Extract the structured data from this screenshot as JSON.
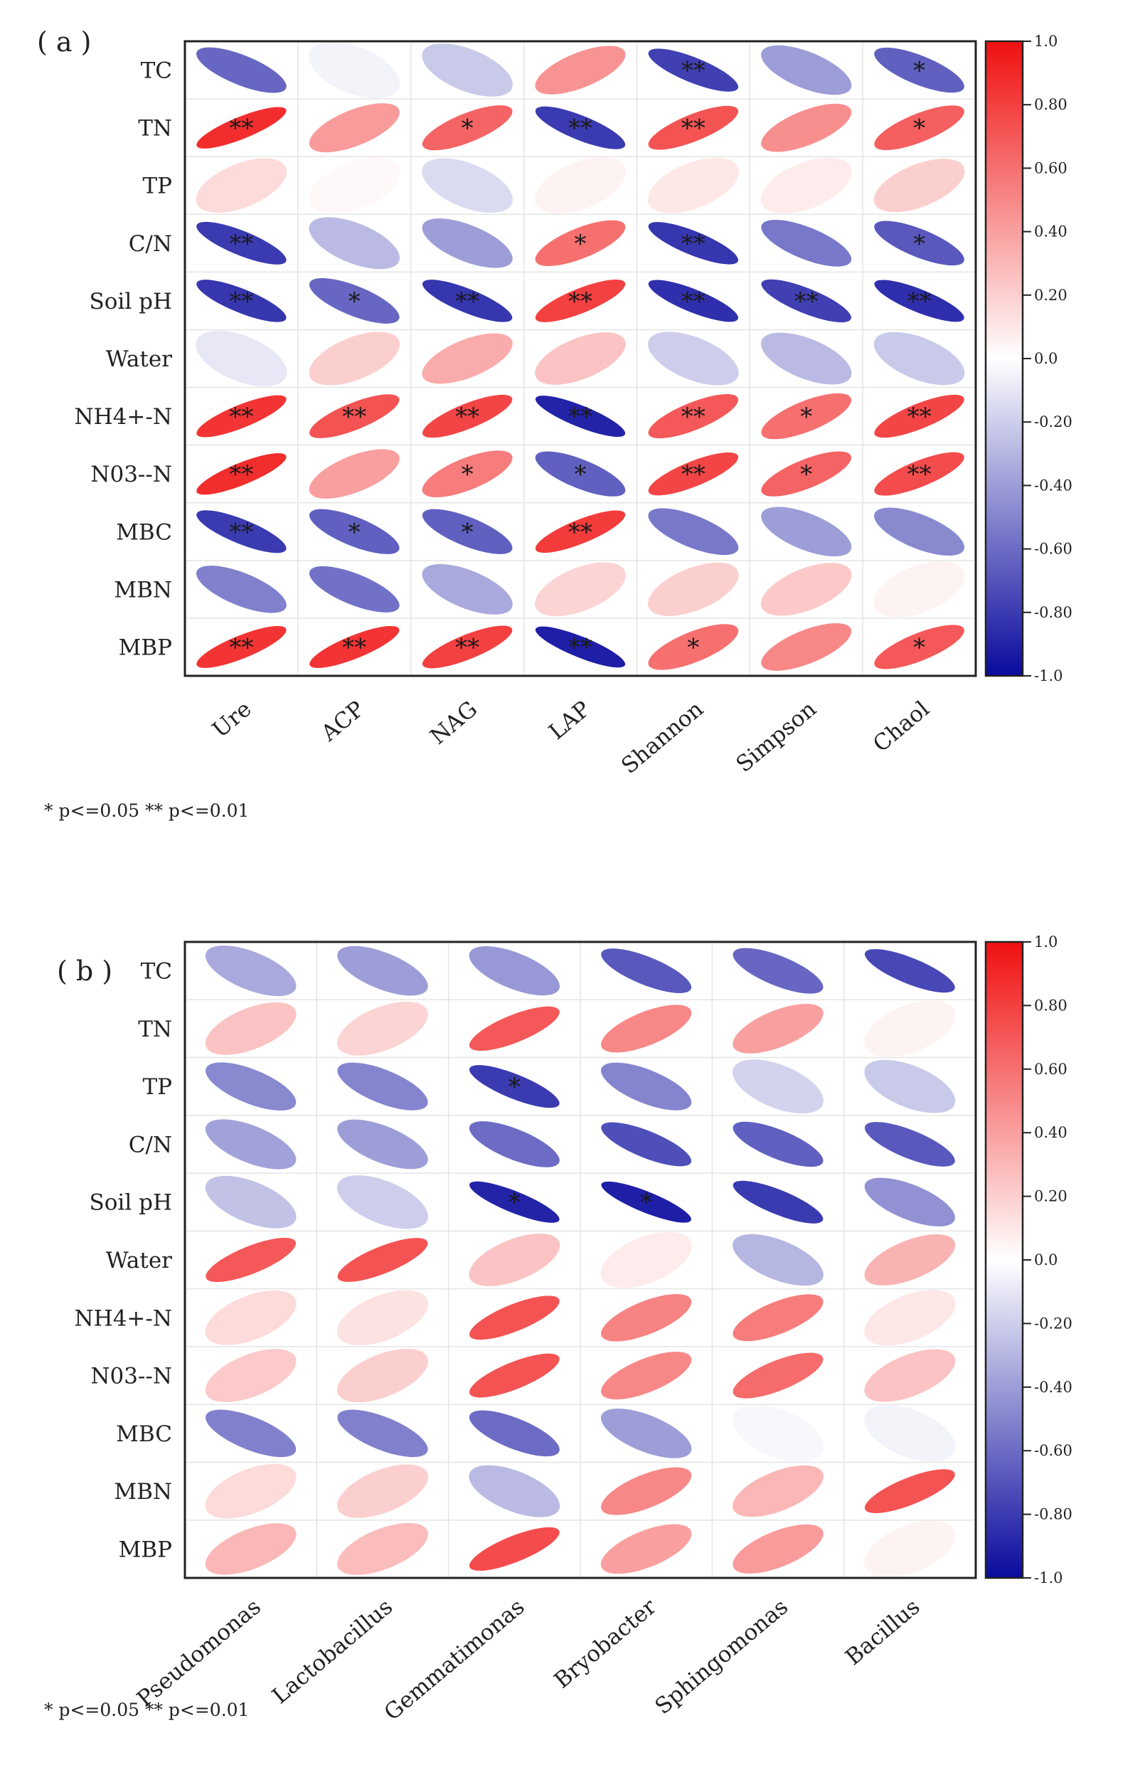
{
  "chart_data": [
    {
      "type": "heatmap",
      "panel_label": "( a )",
      "rows": [
        "TC",
        "TN",
        "TP",
        "C/N",
        "Soil  pH",
        "Water",
        "NH4+-N",
        "N03--N",
        "MBC",
        "MBN",
        "MBP"
      ],
      "columns": [
        "Ure",
        "ACP",
        "NAG",
        "LAP",
        "Shannon",
        "Simpson",
        "Chaol"
      ],
      "values": [
        [
          -0.62,
          -0.05,
          -0.22,
          0.45,
          -0.78,
          -0.4,
          -0.65
        ],
        [
          0.88,
          0.42,
          0.65,
          -0.8,
          0.72,
          0.47,
          0.67
        ],
        [
          0.15,
          0.03,
          -0.15,
          0.05,
          0.1,
          0.08,
          0.2
        ],
        [
          -0.8,
          -0.28,
          -0.4,
          0.6,
          -0.82,
          -0.55,
          -0.68
        ],
        [
          -0.82,
          -0.62,
          -0.82,
          0.8,
          -0.85,
          -0.78,
          -0.85
        ],
        [
          -0.1,
          0.2,
          0.35,
          0.25,
          -0.2,
          -0.28,
          -0.22
        ],
        [
          0.85,
          0.72,
          0.78,
          -0.9,
          0.7,
          0.6,
          0.78
        ],
        [
          0.88,
          0.4,
          0.55,
          -0.65,
          0.78,
          0.65,
          0.75
        ],
        [
          -0.8,
          -0.65,
          -0.65,
          0.82,
          -0.55,
          -0.4,
          -0.48
        ],
        [
          -0.52,
          -0.58,
          -0.35,
          0.18,
          0.2,
          0.23,
          0.05
        ],
        [
          0.85,
          0.85,
          0.8,
          -0.92,
          0.6,
          0.5,
          0.7
        ]
      ],
      "significance": [
        [
          "",
          "",
          "",
          "",
          "**",
          "",
          "*"
        ],
        [
          "**",
          "",
          "*",
          "**",
          "**",
          "",
          "*"
        ],
        [
          "",
          "",
          "",
          "",
          "",
          "",
          ""
        ],
        [
          "**",
          "",
          "",
          "*",
          "**",
          "",
          "*"
        ],
        [
          "**",
          "*",
          "**",
          "**",
          "**",
          "**",
          "**"
        ],
        [
          "",
          "",
          "",
          "",
          "",
          "",
          ""
        ],
        [
          "**",
          "**",
          "**",
          "**",
          "**",
          "*",
          "**"
        ],
        [
          "**",
          "",
          "*",
          "*",
          "**",
          "*",
          "**"
        ],
        [
          "**",
          "*",
          "*",
          "**",
          "",
          "",
          ""
        ],
        [
          "",
          "",
          "",
          "",
          "",
          "",
          ""
        ],
        [
          "**",
          "**",
          "**",
          "**",
          "*",
          "",
          "*"
        ]
      ],
      "colorbar": {
        "range": [
          -1.0,
          1.0
        ],
        "ticks": [
          "1.0",
          "0.80",
          "0.60",
          "0.40",
          "0.20",
          "0.0",
          "-0.20",
          "-0.40",
          "-0.60",
          "-0.80",
          "-1.0"
        ],
        "colors": {
          "negative": "#0a0a9e",
          "zero": "#ffffff",
          "positive": "#f01010"
        }
      },
      "footnote": "* p<=0.05   ** p<=0.01"
    },
    {
      "type": "heatmap",
      "panel_label": "( b )",
      "rows": [
        "TC",
        "TN",
        "TP",
        "C/N",
        "Soil  pH",
        "Water",
        "NH4+-N",
        "N03--N",
        "MBC",
        "MBN",
        "MBP"
      ],
      "columns": [
        "Pseudomonas",
        "Lactobacillus",
        "Gemmatimonas",
        "Bryobacter",
        "Sphingomonas",
        "Bacillus"
      ],
      "values": [
        [
          -0.35,
          -0.4,
          -0.42,
          -0.68,
          -0.62,
          -0.75
        ],
        [
          0.25,
          0.18,
          0.7,
          0.5,
          0.4,
          0.05
        ],
        [
          -0.48,
          -0.5,
          -0.8,
          -0.5,
          -0.18,
          -0.22
        ],
        [
          -0.38,
          -0.4,
          -0.6,
          -0.72,
          -0.65,
          -0.68
        ],
        [
          -0.25,
          -0.2,
          -0.9,
          -0.92,
          -0.8,
          -0.45
        ],
        [
          0.7,
          0.72,
          0.25,
          0.08,
          -0.3,
          0.32
        ],
        [
          0.15,
          0.12,
          0.72,
          0.52,
          0.55,
          0.1
        ],
        [
          0.22,
          0.2,
          0.72,
          0.5,
          0.62,
          0.25
        ],
        [
          -0.52,
          -0.52,
          -0.6,
          -0.4,
          -0.03,
          -0.05
        ],
        [
          0.15,
          0.2,
          -0.28,
          0.5,
          0.3,
          0.72
        ],
        [
          0.3,
          0.28,
          0.75,
          0.4,
          0.42,
          0.05
        ]
      ],
      "significance": [
        [
          "",
          "",
          "",
          "",
          "",
          ""
        ],
        [
          "",
          "",
          "",
          "",
          "",
          ""
        ],
        [
          "",
          "",
          "*",
          "",
          "",
          ""
        ],
        [
          "",
          "",
          "",
          "",
          "",
          ""
        ],
        [
          "",
          "",
          "*",
          "*",
          "",
          ""
        ],
        [
          "",
          "",
          "",
          "",
          "",
          ""
        ],
        [
          "",
          "",
          "",
          "",
          "",
          ""
        ],
        [
          "",
          "",
          "",
          "",
          "",
          ""
        ],
        [
          "",
          "",
          "",
          "",
          "",
          ""
        ],
        [
          "",
          "",
          "",
          "",
          "",
          ""
        ],
        [
          "",
          "",
          "",
          "",
          "",
          ""
        ]
      ],
      "colorbar": {
        "range": [
          -1.0,
          1.0
        ],
        "ticks": [
          "1.0",
          "0.80",
          "0.60",
          "0.40",
          "0.20",
          "0.0",
          "-0.20",
          "-0.40",
          "-0.60",
          "-0.80",
          "-1.0"
        ],
        "colors": {
          "negative": "#0a0a9e",
          "zero": "#ffffff",
          "positive": "#f01010"
        }
      },
      "footnote": "* p<=0.05   ** p<=0.01"
    }
  ]
}
